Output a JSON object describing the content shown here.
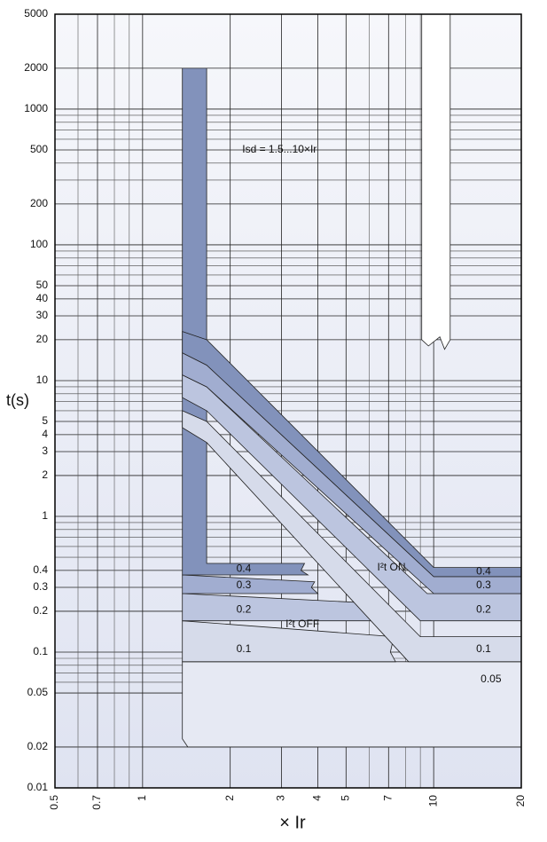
{
  "chart_data": {
    "type": "band",
    "xlabel": "×  Ir",
    "ylabel": "t(s)",
    "xscale": "log",
    "yscale": "log",
    "xlim": [
      0.5,
      20
    ],
    "ylim": [
      0.01,
      5000
    ],
    "xticks": [
      0.5,
      0.7,
      1,
      2,
      3,
      4,
      5,
      7,
      10,
      20
    ],
    "xminor": [
      0.6,
      0.8,
      0.9,
      6,
      8,
      9
    ],
    "yticks": [
      5000,
      2000,
      1000,
      500,
      200,
      100,
      50,
      40,
      30,
      20,
      10,
      5,
      4,
      3,
      2,
      1,
      0.4,
      0.3,
      0.2,
      0.1,
      0.05,
      0.02,
      0.01
    ],
    "yminor": [
      900,
      800,
      700,
      600,
      400,
      300,
      90,
      80,
      70,
      60,
      9,
      8,
      7,
      6,
      0.9,
      0.8,
      0.7,
      0.6,
      0.5,
      0.09,
      0.08,
      0.07,
      0.06
    ],
    "grid": true,
    "bands": [
      {
        "color": "#e6e9f3",
        "x": [
          1.37,
          20,
          20,
          1.43,
          1.37
        ],
        "y": [
          0.085,
          0.085,
          0.02,
          0.02,
          0.023
        ]
      },
      {
        "color": "#d6dbea",
        "x": [
          1.37,
          7.3,
          7.1,
          7.4,
          1.37
        ],
        "y": [
          0.17,
          0.13,
          0.1,
          0.085,
          0.085
        ]
      },
      {
        "color": "#bcc5df",
        "x": [
          1.37,
          6.0,
          5.8,
          6.1,
          1.37
        ],
        "y": [
          0.27,
          0.23,
          0.2,
          0.17,
          0.17
        ]
      },
      {
        "color": "#a1add0",
        "x": [
          1.37,
          3.9,
          3.8,
          4.0,
          1.37
        ],
        "y": [
          0.37,
          0.33,
          0.3,
          0.27,
          0.27
        ]
      },
      {
        "color": "#8292bb",
        "x": [
          1.37,
          1.66,
          1.66,
          3.6,
          3.5,
          3.7,
          1.37
        ],
        "y": [
          2000,
          2000,
          0.45,
          0.45,
          0.4,
          0.37,
          0.37
        ]
      },
      {
        "color": "#d6dbea",
        "x": [
          1.37,
          1.66,
          9,
          20,
          20,
          8.2,
          1.66,
          1.37
        ],
        "y": [
          6,
          5,
          0.13,
          0.13,
          0.085,
          0.085,
          3.5,
          4.5
        ]
      },
      {
        "color": "#bcc5df",
        "x": [
          1.37,
          1.66,
          9.5,
          20,
          20,
          9,
          1.66,
          1.37
        ],
        "y": [
          11,
          9,
          0.27,
          0.27,
          0.17,
          0.17,
          6,
          7.5
        ]
      },
      {
        "color": "#a1add0",
        "x": [
          1.37,
          1.66,
          10,
          20,
          20,
          10,
          1.66,
          1.37
        ],
        "y": [
          16,
          13,
          0.36,
          0.36,
          0.27,
          0.27,
          9,
          11
        ]
      },
      {
        "color": "#8292bb",
        "x": [
          1.37,
          1.66,
          10,
          20,
          20,
          10,
          1.66,
          1.37
        ],
        "y": [
          23,
          20,
          0.42,
          0.42,
          0.36,
          0.36,
          13,
          16
        ]
      },
      {
        "color": "#ffffff",
        "x": [
          9.1,
          11.4,
          11.4,
          10.9,
          10.5,
          9.6,
          9.1
        ],
        "y": [
          5000,
          5000,
          20,
          17,
          21,
          18,
          20
        ]
      }
    ],
    "annotations": [
      {
        "text": "Isd = 1.5...10×Ir",
        "x": 2.2,
        "y": 500
      },
      {
        "text": "I²t ON",
        "x": 6.4,
        "y": 0.42
      },
      {
        "text": "I²t OFF",
        "x": 3.1,
        "y": 0.16
      },
      {
        "text": "0.4",
        "x": 2.1,
        "y": 0.41
      },
      {
        "text": "0.3",
        "x": 2.1,
        "y": 0.31
      },
      {
        "text": "0.2",
        "x": 2.1,
        "y": 0.205
      },
      {
        "text": "0.1",
        "x": 2.1,
        "y": 0.105
      },
      {
        "text": "0.4",
        "x": 14,
        "y": 0.39
      },
      {
        "text": "0.3",
        "x": 14,
        "y": 0.31
      },
      {
        "text": "0.2",
        "x": 14,
        "y": 0.205
      },
      {
        "text": "0.1",
        "x": 14,
        "y": 0.105
      },
      {
        "text": "0.05",
        "x": 14.5,
        "y": 0.063
      }
    ]
  }
}
